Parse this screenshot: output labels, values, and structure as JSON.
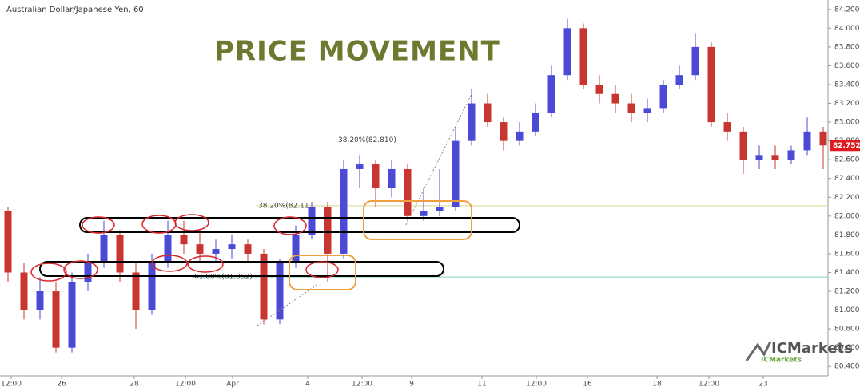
{
  "chart_data": {
    "type": "candlestick",
    "title": "Australian Dollar/Japanese Yen, 60",
    "annotation": "PRICE MOVEMENT",
    "logo": {
      "brand": "ICMarkets",
      "sub": "ICMarkets"
    },
    "up_color": "#4a4ad6",
    "down_color": "#c8352e",
    "candles": [
      {
        "o": 82.05,
        "h": 82.1,
        "l": 81.3,
        "c": 81.4
      },
      {
        "o": 81.4,
        "h": 81.5,
        "l": 80.9,
        "c": 81.0
      },
      {
        "o": 81.0,
        "h": 81.35,
        "l": 80.9,
        "c": 81.2
      },
      {
        "o": 81.2,
        "h": 81.3,
        "l": 80.55,
        "c": 80.6
      },
      {
        "o": 80.6,
        "h": 81.4,
        "l": 80.55,
        "c": 81.3
      },
      {
        "o": 81.3,
        "h": 81.6,
        "l": 81.2,
        "c": 81.5
      },
      {
        "o": 81.5,
        "h": 81.95,
        "l": 81.45,
        "c": 81.8
      },
      {
        "o": 81.8,
        "h": 81.85,
        "l": 81.3,
        "c": 81.4
      },
      {
        "o": 81.4,
        "h": 81.5,
        "l": 80.8,
        "c": 81.0
      },
      {
        "o": 81.0,
        "h": 81.6,
        "l": 80.95,
        "c": 81.5
      },
      {
        "o": 81.5,
        "h": 81.95,
        "l": 81.45,
        "c": 81.8
      },
      {
        "o": 81.8,
        "h": 81.95,
        "l": 81.6,
        "c": 81.7
      },
      {
        "o": 81.7,
        "h": 81.85,
        "l": 81.5,
        "c": 81.6
      },
      {
        "o": 81.6,
        "h": 81.75,
        "l": 81.5,
        "c": 81.65
      },
      {
        "o": 81.65,
        "h": 81.8,
        "l": 81.55,
        "c": 81.7
      },
      {
        "o": 81.7,
        "h": 81.75,
        "l": 81.5,
        "c": 81.6
      },
      {
        "o": 81.6,
        "h": 81.65,
        "l": 80.85,
        "c": 80.9
      },
      {
        "o": 80.9,
        "h": 81.55,
        "l": 80.85,
        "c": 81.5
      },
      {
        "o": 81.5,
        "h": 81.9,
        "l": 81.45,
        "c": 81.8
      },
      {
        "o": 81.8,
        "h": 82.15,
        "l": 81.75,
        "c": 82.1
      },
      {
        "o": 82.1,
        "h": 82.15,
        "l": 81.3,
        "c": 81.6
      },
      {
        "o": 81.6,
        "h": 82.6,
        "l": 81.55,
        "c": 82.5
      },
      {
        "o": 82.5,
        "h": 82.65,
        "l": 82.3,
        "c": 82.55
      },
      {
        "o": 82.55,
        "h": 82.6,
        "l": 82.1,
        "c": 82.3
      },
      {
        "o": 82.3,
        "h": 82.6,
        "l": 82.2,
        "c": 82.5
      },
      {
        "o": 82.5,
        "h": 82.55,
        "l": 81.95,
        "c": 82.0
      },
      {
        "o": 82.0,
        "h": 82.3,
        "l": 81.95,
        "c": 82.05
      },
      {
        "o": 82.05,
        "h": 82.5,
        "l": 82.0,
        "c": 82.1
      },
      {
        "o": 82.1,
        "h": 82.95,
        "l": 82.05,
        "c": 82.8
      },
      {
        "o": 82.8,
        "h": 83.35,
        "l": 82.75,
        "c": 83.2
      },
      {
        "o": 83.2,
        "h": 83.3,
        "l": 82.95,
        "c": 83.0
      },
      {
        "o": 83.0,
        "h": 83.05,
        "l": 82.7,
        "c": 82.8
      },
      {
        "o": 82.8,
        "h": 83.0,
        "l": 82.75,
        "c": 82.9
      },
      {
        "o": 82.9,
        "h": 83.2,
        "l": 82.85,
        "c": 83.1
      },
      {
        "o": 83.1,
        "h": 83.6,
        "l": 83.05,
        "c": 83.5
      },
      {
        "o": 83.5,
        "h": 84.1,
        "l": 83.45,
        "c": 84.0
      },
      {
        "o": 84.0,
        "h": 84.05,
        "l": 83.35,
        "c": 83.4
      },
      {
        "o": 83.4,
        "h": 83.5,
        "l": 83.2,
        "c": 83.3
      },
      {
        "o": 83.3,
        "h": 83.4,
        "l": 83.1,
        "c": 83.2
      },
      {
        "o": 83.2,
        "h": 83.3,
        "l": 83.0,
        "c": 83.1
      },
      {
        "o": 83.1,
        "h": 83.25,
        "l": 83.0,
        "c": 83.15
      },
      {
        "o": 83.15,
        "h": 83.45,
        "l": 83.1,
        "c": 83.4
      },
      {
        "o": 83.4,
        "h": 83.6,
        "l": 83.35,
        "c": 83.5
      },
      {
        "o": 83.5,
        "h": 83.95,
        "l": 83.45,
        "c": 83.8
      },
      {
        "o": 83.8,
        "h": 83.85,
        "l": 82.95,
        "c": 83.0
      },
      {
        "o": 83.0,
        "h": 83.1,
        "l": 82.8,
        "c": 82.9
      },
      {
        "o": 82.9,
        "h": 82.95,
        "l": 82.45,
        "c": 82.6
      },
      {
        "o": 82.6,
        "h": 82.75,
        "l": 82.5,
        "c": 82.65
      },
      {
        "o": 82.65,
        "h": 82.75,
        "l": 82.5,
        "c": 82.6
      },
      {
        "o": 82.6,
        "h": 82.75,
        "l": 82.55,
        "c": 82.7
      },
      {
        "o": 82.7,
        "h": 83.05,
        "l": 82.65,
        "c": 82.9
      },
      {
        "o": 82.9,
        "h": 82.95,
        "l": 82.5,
        "c": 82.752
      }
    ],
    "xlim": [
      -0.5,
      51.5
    ],
    "xticks": [
      {
        "value": 0.2,
        "label": "12:00"
      },
      {
        "value": 3.35,
        "label": "26"
      },
      {
        "value": 7.9,
        "label": "28"
      },
      {
        "value": 11.1,
        "label": "12:00"
      },
      {
        "value": 14.05,
        "label": "Apr"
      },
      {
        "value": 18.75,
        "label": "4"
      },
      {
        "value": 22.15,
        "label": "12:00"
      },
      {
        "value": 25.25,
        "label": "9"
      },
      {
        "value": 29.65,
        "label": "11"
      },
      {
        "value": 33.05,
        "label": "12:00"
      },
      {
        "value": 36.25,
        "label": "16"
      },
      {
        "value": 40.6,
        "label": "18"
      },
      {
        "value": 43.85,
        "label": "12:00"
      },
      {
        "value": 47.25,
        "label": "23"
      }
    ],
    "ylim": [
      80.3,
      84.3
    ],
    "yticks": [
      {
        "value": 80.4,
        "label": "80.400"
      },
      {
        "value": 80.6,
        "label": "80.600"
      },
      {
        "value": 80.8,
        "label": "80.800"
      },
      {
        "value": 81.0,
        "label": "81.000"
      },
      {
        "value": 81.2,
        "label": "81.200"
      },
      {
        "value": 81.4,
        "label": "81.400"
      },
      {
        "value": 81.6,
        "label": "81.600"
      },
      {
        "value": 81.8,
        "label": "81.800"
      },
      {
        "value": 82.0,
        "label": "82.000"
      },
      {
        "value": 82.2,
        "label": "82.200"
      },
      {
        "value": 82.4,
        "label": "82.400"
      },
      {
        "value": 82.6,
        "label": "82.600"
      },
      {
        "value": 82.8,
        "label": "82.800"
      },
      {
        "value": 83.0,
        "label": "83.000"
      },
      {
        "value": 83.2,
        "label": "83.200"
      },
      {
        "value": 83.4,
        "label": "83.400"
      },
      {
        "value": 83.6,
        "label": "83.600"
      },
      {
        "value": 83.8,
        "label": "83.800"
      },
      {
        "value": 84.0,
        "label": "84.000"
      },
      {
        "value": 84.2,
        "label": "84.200"
      }
    ],
    "last_price": 82.752,
    "levels": [
      {
        "value": 82.81,
        "label": "38.20%(82.810)",
        "color": "#a9d67a",
        "start": 20.5
      },
      {
        "value": 82.11,
        "label": "38.20%(82.11",
        "color": "#d6d98f",
        "start": 15.5
      },
      {
        "value": 81.352,
        "label": "61.80%(81.352)",
        "color": "#7fd6c4",
        "start": 11.5
      }
    ]
  }
}
